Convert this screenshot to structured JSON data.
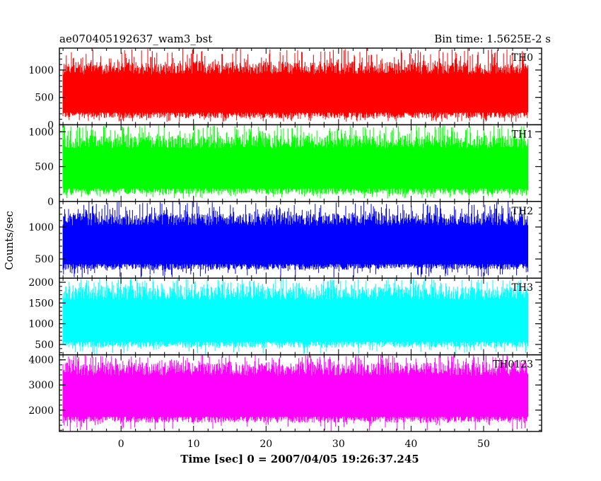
{
  "header": {
    "left": "ae070405192637_wam3_bst",
    "right": "Bin time: 1.5625E-2 s"
  },
  "axes": {
    "ylabel": "Counts/sec",
    "xlabel": "Time [sec] 0 = 2007/04/05 19:26:37.245"
  },
  "chart_data": {
    "type": "line",
    "title": "ae070405192637_wam3_bst",
    "subtitle": "Bin time: 1.5625E-2 s",
    "xlabel": "Time [sec] 0 = 2007/04/05 19:26:37.245",
    "ylabel": "Counts/sec",
    "xlim": [
      -8.5,
      58.0
    ],
    "data_xrange": [
      -8.0,
      56.1
    ],
    "x_ticks": [
      0,
      10,
      20,
      30,
      40,
      50
    ],
    "x_tick_labels": [
      "0",
      "10",
      "20",
      "30",
      "40",
      "50"
    ],
    "grid": false,
    "panels": [
      {
        "name": "TH0",
        "color": "#ff0000",
        "ylim": [
          0,
          1400
        ],
        "y_ticks": [
          0,
          500,
          1000
        ],
        "y_tick_labels": [
          "0",
          "500",
          "1000"
        ],
        "value_typical_min": 120,
        "value_typical_max": 1150,
        "value_min": 50,
        "value_max": 1400
      },
      {
        "name": "TH1",
        "color": "#00ff00",
        "ylim": [
          0,
          1100
        ],
        "y_ticks": [
          0,
          500,
          1000
        ],
        "y_tick_labels": [
          "0",
          "500",
          "1000"
        ],
        "value_typical_min": 100,
        "value_typical_max": 950,
        "value_min": 40,
        "value_max": 1100
      },
      {
        "name": "TH2",
        "color": "#0000ff",
        "ylim": [
          200,
          1400
        ],
        "y_ticks": [
          500,
          1000
        ],
        "y_tick_labels": [
          "500",
          "1000"
        ],
        "value_typical_min": 330,
        "value_typical_max": 1220,
        "value_min": 210,
        "value_max": 1400
      },
      {
        "name": "TH3",
        "color": "#00ffff",
        "ylim": [
          250,
          2100
        ],
        "y_ticks": [
          500,
          1000,
          1500,
          2000
        ],
        "y_tick_labels": [
          "500",
          "1000",
          "1500",
          "2000"
        ],
        "value_typical_min": 420,
        "value_typical_max": 1900,
        "value_min": 260,
        "value_max": 2100
      },
      {
        "name": "TH0123",
        "color": "#ff00ff",
        "ylim": [
          1150,
          4200
        ],
        "y_ticks": [
          2000,
          3000,
          4000
        ],
        "y_tick_labels": [
          "2000",
          "3000",
          "4000"
        ],
        "value_typical_min": 1500,
        "value_typical_max": 3900,
        "value_min": 1160,
        "value_max": 4200
      }
    ]
  }
}
